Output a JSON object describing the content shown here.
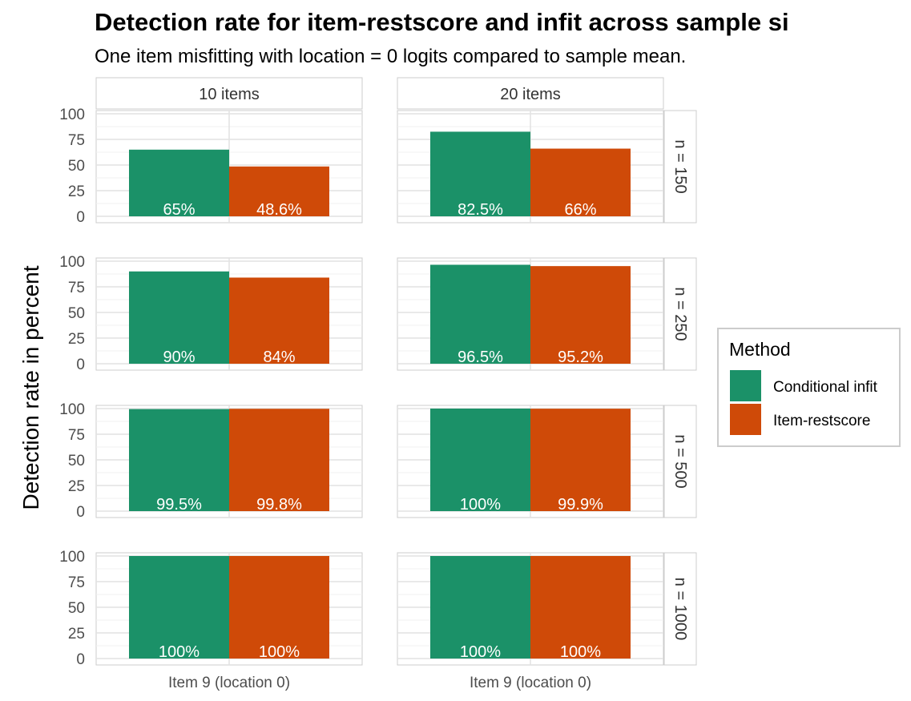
{
  "chart_data": {
    "type": "bar",
    "title": "Detection rate for item-restscore and infit across sample si",
    "subtitle": "One item misfitting with location = 0 logits compared to sample mean.",
    "ylabel": "Detection rate in percent",
    "xlabel": "",
    "ylim": [
      0,
      100
    ],
    "yticks": [
      0,
      25,
      50,
      75,
      100
    ],
    "grid": true,
    "legend_position": "right",
    "legend": {
      "title": "Method",
      "entries": [
        {
          "label": "Conditional infit",
          "color": "#1b9168"
        },
        {
          "label": "Item-restscore",
          "color": "#cf4a08"
        }
      ]
    },
    "columns": [
      "10 items",
      "20 items"
    ],
    "rows": [
      "n = 150",
      "n = 250",
      "n = 500",
      "n = 1000"
    ],
    "category": "Item 9 (location 0)",
    "series_colors": [
      "#1b9168",
      "#cf4a08"
    ],
    "panels": [
      {
        "column": "10 items",
        "row": "n = 150",
        "values": [
          65,
          48.6
        ],
        "labels": [
          "65%",
          "48.6%"
        ]
      },
      {
        "column": "20 items",
        "row": "n = 150",
        "values": [
          82.5,
          66
        ],
        "labels": [
          "82.5%",
          "66%"
        ]
      },
      {
        "column": "10 items",
        "row": "n = 250",
        "values": [
          90,
          84
        ],
        "labels": [
          "90%",
          "84%"
        ]
      },
      {
        "column": "20 items",
        "row": "n = 250",
        "values": [
          96.5,
          95.2
        ],
        "labels": [
          "96.5%",
          "95.2%"
        ]
      },
      {
        "column": "10 items",
        "row": "n = 500",
        "values": [
          99.5,
          99.8
        ],
        "labels": [
          "99.5%",
          "99.8%"
        ]
      },
      {
        "column": "20 items",
        "row": "n = 500",
        "values": [
          100,
          99.9
        ],
        "labels": [
          "100%",
          "99.9%"
        ]
      },
      {
        "column": "10 items",
        "row": "n = 1000",
        "values": [
          100,
          100
        ],
        "labels": [
          "100%",
          "100%"
        ]
      },
      {
        "column": "20 items",
        "row": "n = 1000",
        "values": [
          100,
          100
        ],
        "labels": [
          "100%",
          "100%"
        ]
      }
    ]
  }
}
